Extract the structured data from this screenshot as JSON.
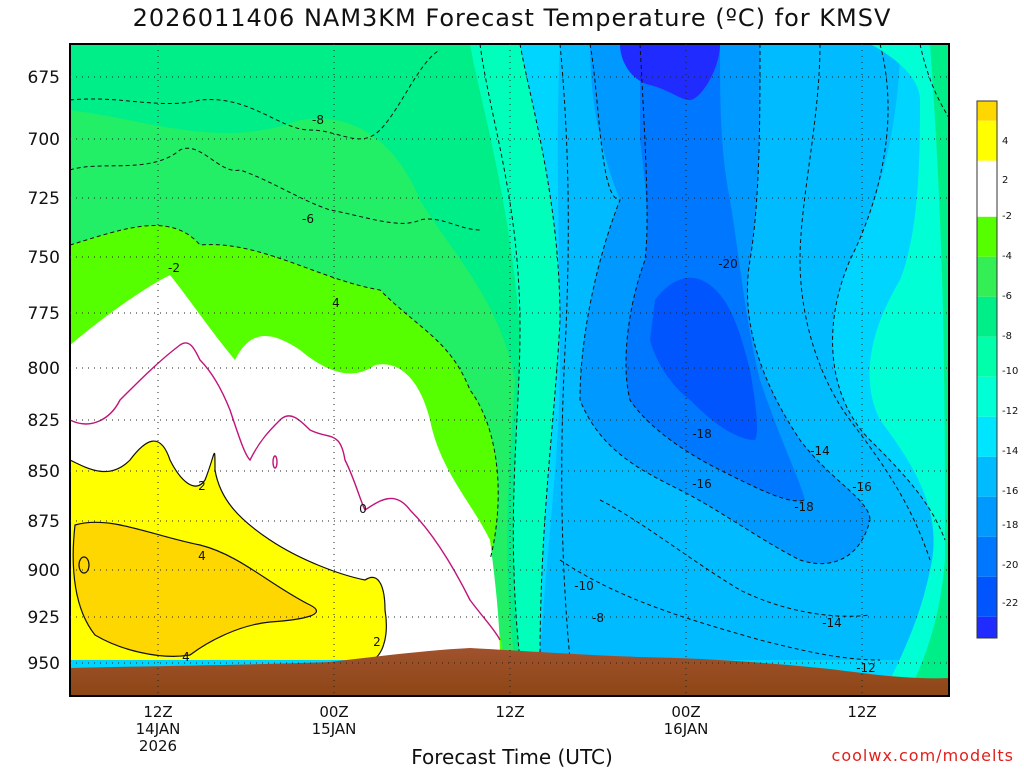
{
  "title": "2026011406 NAM3KM Forecast Temperature (ºC) for KMSV",
  "footer": "Forecast Time (UTC)",
  "credit": "coolwx.com/modelts",
  "chart_data": {
    "type": "heatmap",
    "title": "2026011406 NAM3KM Forecast Temperature (ºC) for KMSV",
    "xlabel": "Forecast Time (UTC)",
    "ylabel": "",
    "y_ticks": [
      "675",
      "700",
      "725",
      "750",
      "775",
      "800",
      "825",
      "850",
      "875",
      "900",
      "925",
      "950"
    ],
    "x_ticks": [
      {
        "line1": "12Z",
        "line2": "14JAN",
        "line3": "2026"
      },
      {
        "line1": "00Z",
        "line2": "15JAN",
        "line3": ""
      },
      {
        "line1": "12Z",
        "line2": "",
        "line3": ""
      },
      {
        "line1": "00Z",
        "line2": "16JAN",
        "line3": ""
      },
      {
        "line1": "12Z",
        "line2": "",
        "line3": ""
      }
    ],
    "colorbar_labels": [
      "4",
      "2",
      "-2",
      "-4",
      "-6",
      "-8",
      "-10",
      "-12",
      "-14",
      "-16",
      "-18",
      "-20",
      "-22"
    ],
    "colorbar_colors": [
      "#ffd700",
      "#ffff00",
      "#ffffff",
      "#55ff00",
      "#33ee55",
      "#00ee88",
      "#00ffaa",
      "#00ffd5",
      "#00e5ff",
      "#00bbff",
      "#0099ff",
      "#0077ff",
      "#0055ff",
      "#1f2bff"
    ],
    "contour_labels": [
      {
        "text": "-8"
      },
      {
        "text": "-6"
      },
      {
        "text": "-2"
      },
      {
        "text": "4"
      },
      {
        "text": "-20"
      },
      {
        "text": "-18"
      },
      {
        "text": "-16"
      },
      {
        "text": "-14"
      },
      {
        "text": "-18"
      },
      {
        "text": "-16"
      },
      {
        "text": "-14"
      },
      {
        "text": "-10"
      },
      {
        "text": "-8"
      },
      {
        "text": "-12"
      },
      {
        "text": "2"
      },
      {
        "text": "0"
      },
      {
        "text": "4"
      },
      {
        "text": "4"
      },
      {
        "text": "2"
      }
    ]
  }
}
